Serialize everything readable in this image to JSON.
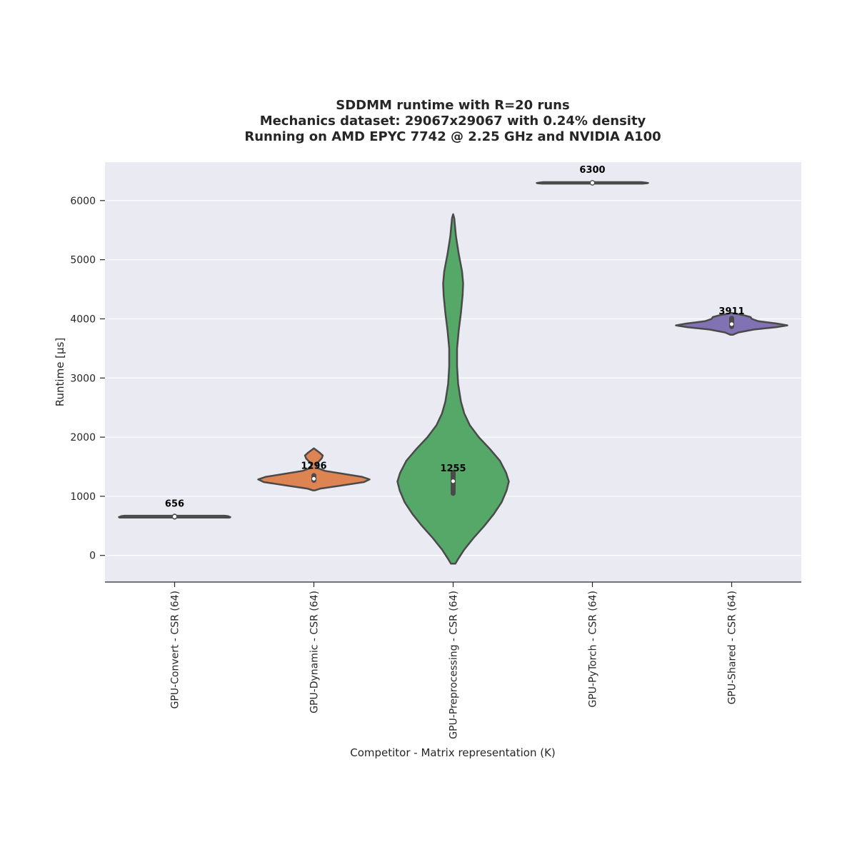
{
  "chart_data": {
    "type": "violin",
    "title": [
      "SDDMM runtime with R=20 runs",
      "Mechanics dataset: 29067x29067 with 0.24% density",
      "Running on AMD EPYC 7742 @ 2.25 GHz and NVIDIA A100"
    ],
    "xlabel": "Competitor - Matrix representation (K)",
    "ylabel": "Runtime [µs]",
    "ylim": [
      -450,
      6650
    ],
    "yticks": [
      0,
      1000,
      2000,
      3000,
      4000,
      5000,
      6000
    ],
    "grid": true,
    "categories": [
      "GPU-Convert - CSR (64)",
      "GPU-Dynamic - CSR (64)",
      "GPU-Preprocessing - CSR (64)",
      "GPU-PyTorch - CSR (64)",
      "GPU-Shared - CSR (64)"
    ],
    "colors": [
      "#4c72b0",
      "#dd8452",
      "#55a868",
      "#c44e52",
      "#8172b3"
    ],
    "median_labels": [
      "656",
      "1296",
      "1255",
      "6300",
      "3911"
    ],
    "series": [
      {
        "median": 656,
        "q1": 648,
        "q3": 664,
        "density": [
          [
            640,
            0.985
          ],
          [
            647,
            1.0
          ],
          [
            655,
            0.98
          ],
          [
            665,
            0.96
          ],
          [
            672,
            0.9
          ]
        ]
      },
      {
        "median": 1296,
        "q1": 1270,
        "q3": 1350,
        "density": [
          [
            1100,
            0.02
          ],
          [
            1130,
            0.12
          ],
          [
            1180,
            0.48
          ],
          [
            1240,
            0.9
          ],
          [
            1285,
            1.0
          ],
          [
            1330,
            0.86
          ],
          [
            1380,
            0.52
          ],
          [
            1430,
            0.2
          ],
          [
            1480,
            0.06
          ],
          [
            1530,
            0.04
          ],
          [
            1580,
            0.08
          ],
          [
            1640,
            0.14
          ],
          [
            1690,
            0.16
          ],
          [
            1740,
            0.1
          ],
          [
            1790,
            0.03
          ],
          [
            1810,
            0.0
          ]
        ]
      },
      {
        "median": 1255,
        "q1": 1050,
        "q3": 1400,
        "density": [
          [
            -140,
            0.04
          ],
          [
            -60,
            0.09
          ],
          [
            100,
            0.2
          ],
          [
            300,
            0.37
          ],
          [
            500,
            0.56
          ],
          [
            700,
            0.73
          ],
          [
            900,
            0.87
          ],
          [
            1100,
            0.96
          ],
          [
            1250,
            1.0
          ],
          [
            1400,
            0.95
          ],
          [
            1600,
            0.84
          ],
          [
            1800,
            0.66
          ],
          [
            2000,
            0.46
          ],
          [
            2200,
            0.3
          ],
          [
            2400,
            0.2
          ],
          [
            2600,
            0.14
          ],
          [
            2900,
            0.09
          ],
          [
            3200,
            0.07
          ],
          [
            3500,
            0.07
          ],
          [
            3800,
            0.1
          ],
          [
            4100,
            0.14
          ],
          [
            4400,
            0.17
          ],
          [
            4600,
            0.18
          ],
          [
            4800,
            0.16
          ],
          [
            5100,
            0.1
          ],
          [
            5400,
            0.05
          ],
          [
            5700,
            0.02
          ],
          [
            5770,
            0.0
          ]
        ]
      },
      {
        "median": 6300,
        "q1": 6295,
        "q3": 6305,
        "density": [
          [
            6286,
            0.9
          ],
          [
            6292,
            0.98
          ],
          [
            6298,
            1.0
          ],
          [
            6304,
            0.96
          ],
          [
            6312,
            0.88
          ]
        ]
      },
      {
        "median": 3911,
        "q1": 3870,
        "q3": 4010,
        "density": [
          [
            3730,
            0.02
          ],
          [
            3770,
            0.12
          ],
          [
            3820,
            0.4
          ],
          [
            3860,
            0.8
          ],
          [
            3890,
            1.0
          ],
          [
            3920,
            0.82
          ],
          [
            3960,
            0.48
          ],
          [
            4000,
            0.36
          ],
          [
            4030,
            0.34
          ],
          [
            4060,
            0.22
          ],
          [
            4090,
            0.05
          ],
          [
            4100,
            0.0
          ]
        ]
      }
    ]
  }
}
